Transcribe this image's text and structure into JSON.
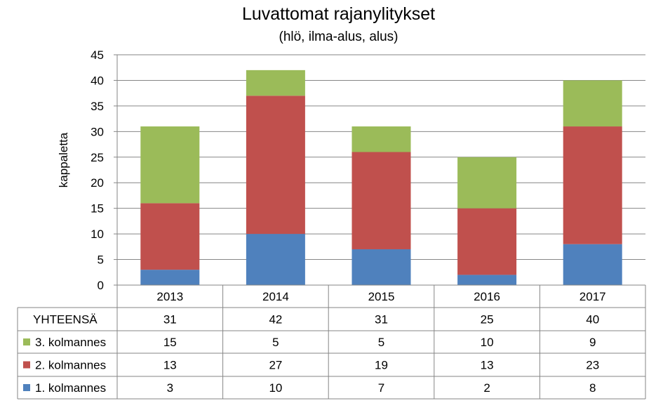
{
  "chart_data": {
    "type": "bar",
    "stacked": true,
    "title": "Luvattomat rajanylitykset",
    "subtitle": "(hlö, ilma-alus, alus)",
    "ylabel": "kappaletta",
    "ylim": [
      0,
      45
    ],
    "yticks": [
      0,
      5,
      10,
      15,
      20,
      25,
      30,
      35,
      40,
      45
    ],
    "grid": true,
    "categories": [
      "2013",
      "2014",
      "2015",
      "2016",
      "2017"
    ],
    "totals_label": "YHTEENSÄ",
    "totals": [
      31,
      42,
      31,
      25,
      40
    ],
    "series": [
      {
        "name": "1. kolmannes",
        "color": "#4F81BD",
        "values": [
          3,
          10,
          7,
          2,
          8
        ]
      },
      {
        "name": "2. kolmannes",
        "color": "#C0504D",
        "values": [
          13,
          27,
          19,
          13,
          23
        ]
      },
      {
        "name": "3. kolmannes",
        "color": "#9BBB59",
        "values": [
          15,
          5,
          5,
          10,
          9
        ]
      }
    ]
  }
}
